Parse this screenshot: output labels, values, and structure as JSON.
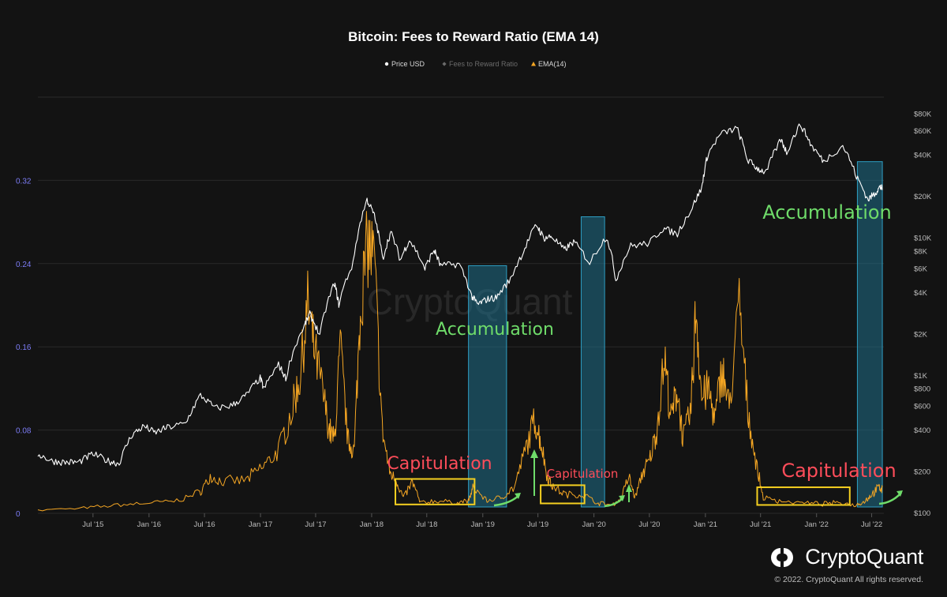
{
  "chart_data": {
    "type": "line",
    "title": "Bitcoin: Fees to Reward Ratio (EMA 14)",
    "legend": [
      {
        "name": "Price USD",
        "marker": "circle",
        "color": "#ffffff",
        "active": true
      },
      {
        "name": "Fees to Reward Ratio",
        "marker": "diamond",
        "color": "#6b6b6b",
        "active": false
      },
      {
        "name": "EMA(14)",
        "marker": "triangle",
        "color": "#f5a623",
        "active": true
      }
    ],
    "legend_position": "top-center",
    "left_axis": {
      "ticks": [
        {
          "v": 0,
          "label": "0"
        },
        {
          "v": 0.08,
          "label": "0.08"
        },
        {
          "v": 0.16,
          "label": "0.16"
        },
        {
          "v": 0.24,
          "label": "0.24"
        },
        {
          "v": 0.32,
          "label": "0.32"
        }
      ],
      "ylim": [
        0,
        0.4
      ],
      "color": "#7c7cf5"
    },
    "right_axis": {
      "scale": "log",
      "ticks": [
        {
          "v": 100,
          "label": "$100"
        },
        {
          "v": 200,
          "label": "$200"
        },
        {
          "v": 400,
          "label": "$400"
        },
        {
          "v": 600,
          "label": "$600"
        },
        {
          "v": 800,
          "label": "$800"
        },
        {
          "v": 1000,
          "label": "$1K"
        },
        {
          "v": 2000,
          "label": "$2K"
        },
        {
          "v": 4000,
          "label": "$4K"
        },
        {
          "v": 6000,
          "label": "$6K"
        },
        {
          "v": 8000,
          "label": "$8K"
        },
        {
          "v": 10000,
          "label": "$10K"
        },
        {
          "v": 20000,
          "label": "$20K"
        },
        {
          "v": 40000,
          "label": "$40K"
        },
        {
          "v": 60000,
          "label": "$60K"
        },
        {
          "v": 80000,
          "label": "$80K"
        }
      ],
      "ylim": [
        100,
        106000
      ]
    },
    "x_axis": {
      "ticks": [
        {
          "d": "2015-07-01",
          "label": "Jul '15"
        },
        {
          "d": "2016-01-01",
          "label": "Jan '16"
        },
        {
          "d": "2016-07-01",
          "label": "Jul '16"
        },
        {
          "d": "2017-01-01",
          "label": "Jan '17"
        },
        {
          "d": "2017-07-01",
          "label": "Jul '17"
        },
        {
          "d": "2018-01-01",
          "label": "Jan '18"
        },
        {
          "d": "2018-07-01",
          "label": "Jul '18"
        },
        {
          "d": "2019-01-01",
          "label": "Jan '19"
        },
        {
          "d": "2019-07-01",
          "label": "Jul '19"
        },
        {
          "d": "2020-01-01",
          "label": "Jan '20"
        },
        {
          "d": "2020-07-01",
          "label": "Jul '20"
        },
        {
          "d": "2021-01-01",
          "label": "Jan '21"
        },
        {
          "d": "2021-07-01",
          "label": "Jul '21"
        },
        {
          "d": "2022-01-01",
          "label": "Jan '22"
        },
        {
          "d": "2022-07-01",
          "label": "Jul '22"
        }
      ],
      "range": [
        "2015-01-01",
        "2022-08-10"
      ]
    },
    "grid": true,
    "series": [
      {
        "name": "Price USD",
        "axis": "right",
        "color": "#ffffff",
        "points": [
          [
            "2015-01-01",
            270
          ],
          [
            "2015-02-15",
            240
          ],
          [
            "2015-04-01",
            235
          ],
          [
            "2015-05-15",
            235
          ],
          [
            "2015-07-01",
            270
          ],
          [
            "2015-08-20",
            240
          ],
          [
            "2015-09-25",
            230
          ],
          [
            "2015-11-05",
            370
          ],
          [
            "2015-12-15",
            430
          ],
          [
            "2016-01-20",
            385
          ],
          [
            "2016-03-01",
            420
          ],
          [
            "2016-05-01",
            450
          ],
          [
            "2016-06-18",
            720
          ],
          [
            "2016-08-05",
            580
          ],
          [
            "2016-10-01",
            610
          ],
          [
            "2016-11-15",
            720
          ],
          [
            "2016-12-31",
            960
          ],
          [
            "2017-01-12",
            800
          ],
          [
            "2017-03-01",
            1200
          ],
          [
            "2017-03-25",
            960
          ],
          [
            "2017-05-25",
            2300
          ],
          [
            "2017-06-12",
            2800
          ],
          [
            "2017-07-15",
            1950
          ],
          [
            "2017-09-01",
            4700
          ],
          [
            "2017-09-15",
            3300
          ],
          [
            "2017-11-01",
            6500
          ],
          [
            "2017-12-17",
            19000
          ],
          [
            "2018-01-10",
            14500
          ],
          [
            "2018-02-06",
            7000
          ],
          [
            "2018-03-05",
            11000
          ],
          [
            "2018-04-05",
            6900
          ],
          [
            "2018-05-05",
            9700
          ],
          [
            "2018-06-25",
            6000
          ],
          [
            "2018-07-25",
            8200
          ],
          [
            "2018-08-15",
            6300
          ],
          [
            "2018-10-15",
            6500
          ],
          [
            "2018-11-25",
            3800
          ],
          [
            "2018-12-15",
            3300
          ],
          [
            "2019-01-15",
            3600
          ],
          [
            "2019-02-15",
            3700
          ],
          [
            "2019-04-02",
            5000
          ],
          [
            "2019-05-15",
            8000
          ],
          [
            "2019-06-26",
            12500
          ],
          [
            "2019-07-20",
            10000
          ],
          [
            "2019-08-15",
            10300
          ],
          [
            "2019-09-25",
            8200
          ],
          [
            "2019-10-26",
            9400
          ],
          [
            "2019-12-18",
            6600
          ],
          [
            "2020-02-12",
            10300
          ],
          [
            "2020-03-13",
            4900
          ],
          [
            "2020-05-01",
            8800
          ],
          [
            "2020-07-01",
            9200
          ],
          [
            "2020-08-15",
            11800
          ],
          [
            "2020-10-01",
            10700
          ],
          [
            "2020-11-15",
            16000
          ],
          [
            "2020-12-20",
            23000
          ],
          [
            "2021-01-08",
            40000
          ],
          [
            "2021-02-20",
            57000
          ],
          [
            "2021-04-14",
            63000
          ],
          [
            "2021-05-19",
            37000
          ],
          [
            "2021-06-22",
            32000
          ],
          [
            "2021-07-20",
            30000
          ],
          [
            "2021-09-06",
            52000
          ],
          [
            "2021-09-25",
            42000
          ],
          [
            "2021-11-09",
            67000
          ],
          [
            "2021-12-15",
            47000
          ],
          [
            "2022-01-24",
            36000
          ],
          [
            "2022-03-28",
            47000
          ],
          [
            "2022-05-12",
            28000
          ],
          [
            "2022-06-18",
            19000
          ],
          [
            "2022-07-10",
            21000
          ],
          [
            "2022-07-28",
            23500
          ],
          [
            "2022-08-05",
            23000
          ]
        ]
      },
      {
        "name": "EMA(14)",
        "axis": "left",
        "color": "#f5a623",
        "points": [
          [
            "2015-01-01",
            0.003
          ],
          [
            "2015-06-01",
            0.005
          ],
          [
            "2015-09-20",
            0.008
          ],
          [
            "2016-01-01",
            0.01
          ],
          [
            "2016-04-01",
            0.012
          ],
          [
            "2016-06-15",
            0.02
          ],
          [
            "2016-07-20",
            0.035
          ],
          [
            "2016-09-01",
            0.03
          ],
          [
            "2016-11-15",
            0.032
          ],
          [
            "2017-01-10",
            0.045
          ],
          [
            "2017-03-01",
            0.06
          ],
          [
            "2017-04-15",
            0.1
          ],
          [
            "2017-05-10",
            0.13
          ],
          [
            "2017-06-05",
            0.2
          ],
          [
            "2017-06-25",
            0.16
          ],
          [
            "2017-07-22",
            0.12
          ],
          [
            "2017-08-15",
            0.08
          ],
          [
            "2017-09-01",
            0.07
          ],
          [
            "2017-09-20",
            0.16
          ],
          [
            "2017-10-15",
            0.07
          ],
          [
            "2017-11-05",
            0.06
          ],
          [
            "2017-11-25",
            0.2
          ],
          [
            "2017-12-20",
            0.26
          ],
          [
            "2018-01-10",
            0.24
          ],
          [
            "2018-02-05",
            0.08
          ],
          [
            "2018-03-01",
            0.04
          ],
          [
            "2018-03-25",
            0.03
          ],
          [
            "2018-04-15",
            0.015
          ],
          [
            "2018-05-15",
            0.03
          ],
          [
            "2018-06-10",
            0.01
          ],
          [
            "2018-08-01",
            0.012
          ],
          [
            "2018-10-01",
            0.01
          ],
          [
            "2018-11-15",
            0.012
          ],
          [
            "2018-12-01",
            0.025
          ],
          [
            "2019-01-15",
            0.012
          ],
          [
            "2019-03-01",
            0.015
          ],
          [
            "2019-04-15",
            0.025
          ],
          [
            "2019-05-20",
            0.06
          ],
          [
            "2019-06-20",
            0.09
          ],
          [
            "2019-07-10",
            0.07
          ],
          [
            "2019-08-01",
            0.035
          ],
          [
            "2019-08-20",
            0.025
          ],
          [
            "2019-10-01",
            0.018
          ],
          [
            "2019-11-25",
            0.018
          ],
          [
            "2020-01-15",
            0.01
          ],
          [
            "2020-02-25",
            0.008
          ],
          [
            "2020-03-25",
            0.012
          ],
          [
            "2020-04-25",
            0.035
          ],
          [
            "2020-05-15",
            0.015
          ],
          [
            "2020-06-10",
            0.04
          ],
          [
            "2020-07-01",
            0.05
          ],
          [
            "2020-07-25",
            0.08
          ],
          [
            "2020-08-20",
            0.15
          ],
          [
            "2020-09-10",
            0.09
          ],
          [
            "2020-10-01",
            0.12
          ],
          [
            "2020-10-20",
            0.07
          ],
          [
            "2020-11-15",
            0.1
          ],
          [
            "2020-12-01",
            0.2
          ],
          [
            "2020-12-20",
            0.11
          ],
          [
            "2021-01-10",
            0.12
          ],
          [
            "2021-02-01",
            0.09
          ],
          [
            "2021-02-25",
            0.14
          ],
          [
            "2021-03-20",
            0.1
          ],
          [
            "2021-04-22",
            0.2
          ],
          [
            "2021-05-20",
            0.1
          ],
          [
            "2021-06-15",
            0.05
          ],
          [
            "2021-07-10",
            0.015
          ],
          [
            "2021-09-01",
            0.012
          ],
          [
            "2021-11-15",
            0.01
          ],
          [
            "2022-01-15",
            0.009
          ],
          [
            "2022-03-15",
            0.01
          ],
          [
            "2022-05-10",
            0.008
          ],
          [
            "2022-06-10",
            0.012
          ],
          [
            "2022-07-01",
            0.018
          ],
          [
            "2022-07-25",
            0.025
          ],
          [
            "2022-08-05",
            0.022
          ]
        ]
      }
    ],
    "annotations": [
      {
        "type": "label",
        "text": "Accumulation",
        "color": "green"
      },
      {
        "type": "label",
        "text": "Accumulation",
        "color": "green"
      },
      {
        "type": "label",
        "text": "Capitulation",
        "color": "red"
      },
      {
        "type": "label",
        "text": "Capitulation",
        "color": "red"
      },
      {
        "type": "label",
        "text": "Capitulation",
        "color": "red"
      }
    ]
  },
  "watermark": "CryptoQuant",
  "brand": {
    "name": "CryptoQuant",
    "logo_icon": "cryptoquant-logo-icon"
  },
  "copyright": "© 2022. CryptoQuant All rights reserved.",
  "colors": {
    "background": "#131313",
    "price": "#ffffff",
    "ema": "#f5a623",
    "accumulation_fill": "#1f6f8b",
    "capitulation_box": "#f5d020",
    "annotation_red": "#ff4d5a",
    "annotation_green": "#6fdc6a"
  }
}
